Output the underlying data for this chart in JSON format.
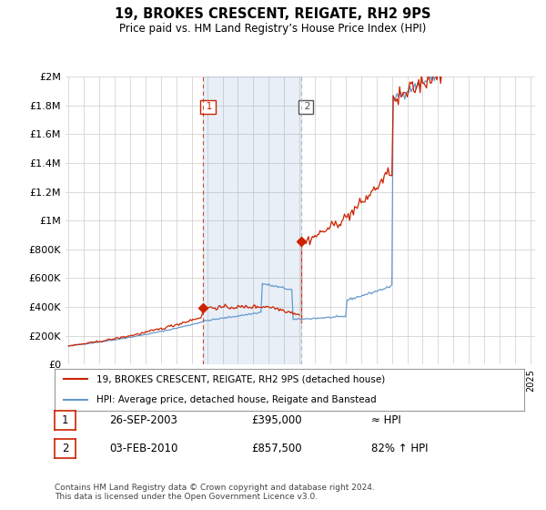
{
  "title": "19, BROKES CRESCENT, REIGATE, RH2 9PS",
  "subtitle": "Price paid vs. HM Land Registry’s House Price Index (HPI)",
  "ylim": [
    0,
    2000000
  ],
  "yticks": [
    0,
    200000,
    400000,
    600000,
    800000,
    1000000,
    1200000,
    1400000,
    1600000,
    1800000,
    2000000
  ],
  "ytick_labels": [
    "£0",
    "£200K",
    "£400K",
    "£600K",
    "£800K",
    "£1M",
    "£1.2M",
    "£1.4M",
    "£1.6M",
    "£1.8M",
    "£2M"
  ],
  "xlim_start": 1994.8,
  "xlim_end": 2025.3,
  "legend_line1": "19, BROKES CRESCENT, REIGATE, RH2 9PS (detached house)",
  "legend_line2": "HPI: Average price, detached house, Reigate and Banstead",
  "purchase1_date": "26-SEP-2003",
  "purchase1_price": "£395,000",
  "purchase1_hpi": "≈ HPI",
  "purchase1_x": 2003.74,
  "purchase1_y": 395000,
  "purchase2_date": "03-FEB-2010",
  "purchase2_price": "£857,500",
  "purchase2_hpi": "82% ↑ HPI",
  "purchase2_x": 2010.09,
  "purchase2_y": 857500,
  "vline1_x": 2003.74,
  "vline2_x": 2010.09,
  "color_red": "#cc2200",
  "color_blue": "#6699cc",
  "color_bg": "#ffffff",
  "color_grid": "#cccccc",
  "color_shade": "#ddeeff",
  "footnote": "Contains HM Land Registry data © Crown copyright and database right 2024.\nThis data is licensed under the Open Government Licence v3.0."
}
